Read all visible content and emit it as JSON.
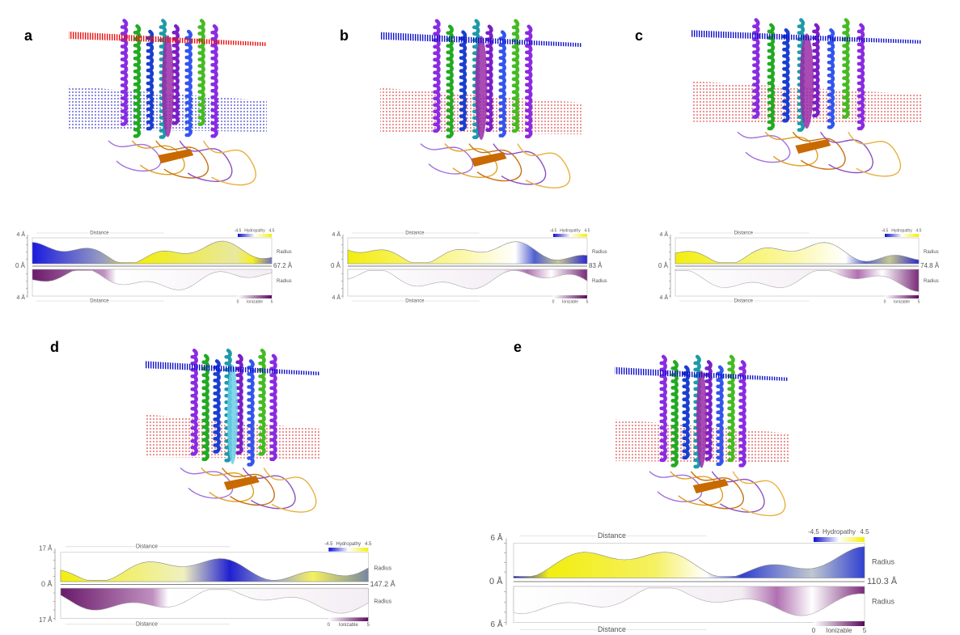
{
  "panels": [
    {
      "label": "a",
      "profile": {
        "radius_scale_top": "4 Å",
        "zero": "0 Å",
        "length": "67.2 Å",
        "radius_scale_bottom": "4 Å",
        "distance_top": "Distance",
        "distance_bottom": "Distance",
        "radius_top": "Radius",
        "radius_bottom": "Radius",
        "hydropathy": {
          "min": "-4.5",
          "title": "Hydropathy",
          "max": "4.5"
        },
        "ionizable": {
          "min": "0",
          "title": "Ionizable",
          "max": "5"
        }
      }
    },
    {
      "label": "b",
      "profile": {
        "radius_scale_top": "4 Å",
        "zero": "0 Å",
        "length": "83 Å",
        "radius_scale_bottom": "4 Å",
        "distance_top": "Distance",
        "distance_bottom": "Distance",
        "radius_top": "Radius",
        "radius_bottom": "Radius",
        "hydropathy": {
          "min": "-4.5",
          "title": "Hydropathy",
          "max": "4.5"
        },
        "ionizable": {
          "min": "0",
          "title": "Ionizable",
          "max": "5"
        }
      }
    },
    {
      "label": "c",
      "profile": {
        "radius_scale_top": "4 Å",
        "zero": "0 Å",
        "length": "74.8 Å",
        "radius_scale_bottom": "4 Å",
        "distance_top": "Distance",
        "distance_bottom": "Distance",
        "radius_top": "Radius",
        "radius_bottom": "Radius",
        "hydropathy": {
          "min": "-4.5",
          "title": "Hydropathy",
          "max": "4.5"
        },
        "ionizable": {
          "min": "0",
          "title": "Ionizable",
          "max": "5"
        }
      }
    },
    {
      "label": "d",
      "profile": {
        "radius_scale_top": "17 Å",
        "zero": "0 Å",
        "length": "147.2 Å",
        "radius_scale_bottom": "17 Å",
        "distance_top": "Distance",
        "distance_bottom": "Distance",
        "radius_top": "Radius",
        "radius_bottom": "Radius",
        "hydropathy": {
          "min": "-4.5",
          "title": "Hydropathy",
          "max": "4.5"
        },
        "ionizable": {
          "min": "0",
          "title": "Ionizable",
          "max": "5"
        }
      }
    },
    {
      "label": "e",
      "profile": {
        "radius_scale_top": "6 Å",
        "zero": "0 Å",
        "length": "110.3 Å",
        "radius_scale_bottom": "6 Å",
        "distance_top": "Distance",
        "distance_bottom": "Distance",
        "radius_top": "Radius",
        "radius_bottom": "Radius",
        "hydropathy": {
          "min": "-4.5",
          "title": "Hydropathy",
          "max": "4.5"
        },
        "ionizable": {
          "min": "0",
          "title": "Ionizable",
          "max": "5"
        }
      }
    }
  ]
}
